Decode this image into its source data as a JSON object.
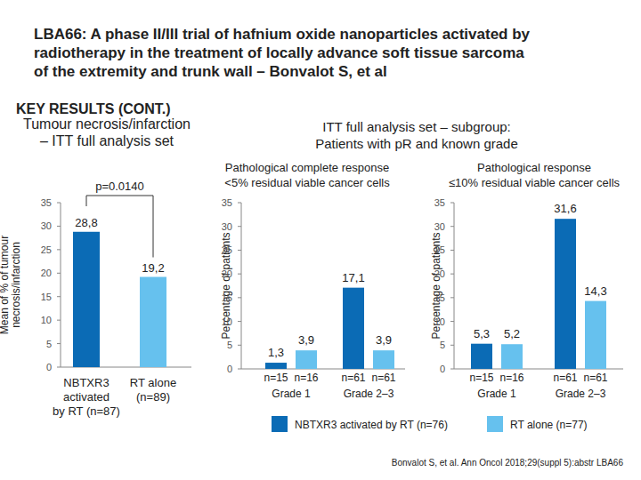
{
  "slide": {
    "title": "LBA66: A phase II/III trial of hafnium oxide nanoparticles activated by radiotherapy in the treatment of locally advance soft tissue sarcoma of the extremity and trunk wall – Bonvalot S, et al",
    "subtitle": "KEY RESULTS (CONT.)",
    "subgroup_header": "ITT full analysis set – subgroup:\nPatients with pR and known grade",
    "citation": "Bonvalot S, et al. Ann Oncol 2018;29(suppl 5):abstr LBA66"
  },
  "chart_data": [
    {
      "type": "bar",
      "title": "Tumour necrosis/infarction\n– ITT full analysis set",
      "y_label": "Mean of % of tumour\nnecrosis/infarction",
      "categories": [
        "NBTXR3\nactivated\nby RT (n=87)",
        "RT alone\n(n=89)"
      ],
      "values": [
        28.8,
        19.2
      ],
      "value_labels": [
        "28,8",
        "19,2"
      ],
      "colors": [
        "#0b6bb5",
        "#66c1ee"
      ],
      "annotation": "p=0.0140",
      "ylim": [
        0,
        35
      ],
      "yticks": [
        0,
        5,
        10,
        15,
        20,
        25,
        30,
        35
      ],
      "data_labels": true
    },
    {
      "type": "bar",
      "title": "Pathological complete response\n<5% residual viable cancer cells",
      "y_label": "Percentage of patients",
      "categories": [
        "Grade 1",
        "Grade 2–3"
      ],
      "series": [
        {
          "name": "NBTXR3 activated by RT (n=76)",
          "color": "#0b6bb5",
          "values": [
            1.3,
            17.1
          ],
          "value_labels": [
            "1,3",
            "17,1"
          ],
          "n_labels": [
            "n=15",
            "n=61"
          ]
        },
        {
          "name": "RT alone (n=77)",
          "color": "#66c1ee",
          "values": [
            3.9,
            3.9
          ],
          "value_labels": [
            "3,9",
            "3,9"
          ],
          "n_labels": [
            "n=16",
            "n=61"
          ]
        }
      ],
      "legend": "bottom",
      "ylim": [
        0,
        35
      ],
      "yticks": [
        0,
        5,
        10,
        15,
        20,
        25,
        30,
        35
      ],
      "data_labels": true
    },
    {
      "type": "bar",
      "title": "Pathological response\n≤10% residual viable cancer cells",
      "y_label": "Percentage of patients",
      "categories": [
        "Grade 1",
        "Grade 2–3"
      ],
      "series": [
        {
          "color": "#0b6bb5",
          "values": [
            5.3,
            31.6
          ],
          "value_labels": [
            "5,3",
            "31,6"
          ],
          "n_labels": [
            "n=15",
            "n=61"
          ]
        },
        {
          "color": "#66c1ee",
          "values": [
            5.2,
            14.3
          ],
          "value_labels": [
            "5,2",
            "14,3"
          ],
          "n_labels": [
            "n=16",
            "n=61"
          ]
        }
      ],
      "ylim": [
        0,
        35
      ],
      "yticks": [
        0,
        5,
        10,
        15,
        20,
        25,
        30,
        35
      ],
      "data_labels": true
    }
  ]
}
